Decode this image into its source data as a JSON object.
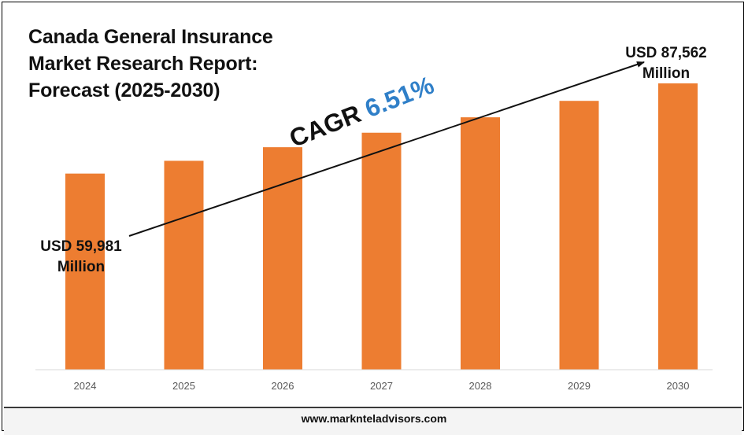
{
  "title_lines": [
    "Canada General Insurance",
    "Market Research Report:",
    "Forecast (2025-2030)"
  ],
  "cagr": {
    "label": "CAGR",
    "value": "6.51%"
  },
  "start_value": {
    "line1": "USD 59,981",
    "line2": "Million"
  },
  "end_value": {
    "line1": "USD 87,562",
    "line2": "Million"
  },
  "footer": "www.marknteladvisors.com",
  "colors": {
    "bar": "#ed7d31",
    "cagr_value": "#2f7fc8",
    "axis": "#d9d9d9",
    "tick_text": "#595959"
  },
  "chart_data": {
    "type": "bar",
    "categories": [
      "2024",
      "2025",
      "2026",
      "2027",
      "2028",
      "2029",
      "2030"
    ],
    "values": [
      59981,
      63885,
      68044,
      72473,
      77190,
      82215,
      87562
    ],
    "ylabel": "",
    "xlabel": "",
    "grid": false,
    "annotations": [
      "USD 59,981 Million",
      "USD 87,562 Million",
      "CAGR 6.51%"
    ]
  }
}
